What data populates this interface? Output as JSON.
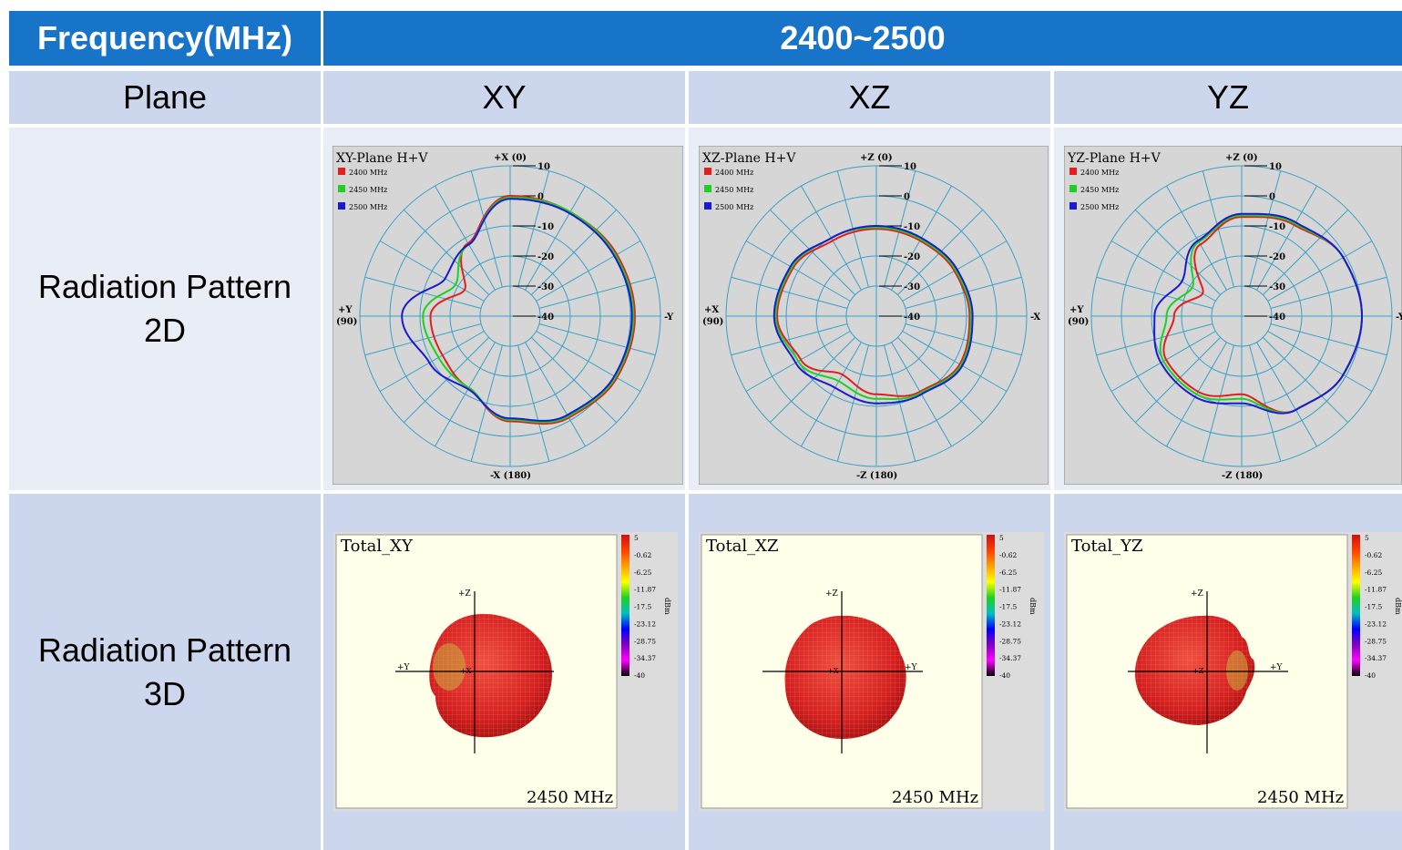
{
  "table": {
    "header": {
      "label": "Frequency(MHz)",
      "value": "2400~2500"
    },
    "plane_row": {
      "label": "Plane",
      "columns": [
        "XY",
        "XZ",
        "YZ"
      ]
    },
    "row_2d": {
      "label_line1": "Radiation Pattern",
      "label_line2": "2D"
    },
    "row_3d": {
      "label_line1": "Radiation Pattern",
      "label_line2": "3D"
    }
  },
  "polar_plots": [
    {
      "title": "XY-Plane  H+V",
      "top": "+X (0)",
      "bottom": "-X (180)",
      "left_a": "+Y",
      "left_b": "(90)",
      "right": "-Y",
      "legend": [
        "2400 MHz",
        "2450 MHz",
        "2500 MHz"
      ],
      "rings": [
        "10",
        "0",
        "-10",
        "-20",
        "-30",
        "-40"
      ]
    },
    {
      "title": "XZ-Plane  H+V",
      "top": "+Z (0)",
      "bottom": "-Z (180)",
      "left_a": "+X",
      "left_b": "(90)",
      "right": "-X",
      "legend": [
        "2400 MHz",
        "2450 MHz",
        "2500 MHz"
      ],
      "rings": [
        "10",
        "0",
        "-10",
        "-20",
        "-30",
        "-40"
      ]
    },
    {
      "title": "YZ-Plane  H+V",
      "top": "+Z (0)",
      "bottom": "-Z (180)",
      "left_a": "+Y",
      "left_b": "(90)",
      "right": "-Y",
      "legend": [
        "2400 MHz",
        "2450 MHz",
        "2500 MHz"
      ],
      "rings": [
        "10",
        "0",
        "-10",
        "-20",
        "-30",
        "-40"
      ]
    }
  ],
  "plots_3d": [
    {
      "title": "Total_XY",
      "freq": "2450 MHz",
      "axis_top": "+Z",
      "axis_left": "+Y",
      "axis_center": "+X"
    },
    {
      "title": "Total_XZ",
      "freq": "2450 MHz",
      "axis_top": "+Z",
      "axis_left": "",
      "axis_center": "+X",
      "axis_right": "+Y"
    },
    {
      "title": "Total_YZ",
      "freq": "2450 MHz",
      "axis_top": "+Z",
      "axis_left": "",
      "axis_center": "+Z",
      "axis_right": "+Y"
    }
  ],
  "colorbar": {
    "ticks": [
      "5",
      "-0.62",
      "-6.25",
      "-11.87",
      "-17.5",
      "-23.12",
      "-28.75",
      "-34.37",
      "-40"
    ],
    "unit": "dBm"
  },
  "colors": {
    "header_bg": "#1874c9",
    "row_dark": "#ccd6ec",
    "row_light": "#e9edf6",
    "f2400": "#e02020",
    "f2450": "#20d020",
    "f2500": "#1a1ad0",
    "polar_grid": "#3aa0c8"
  }
}
